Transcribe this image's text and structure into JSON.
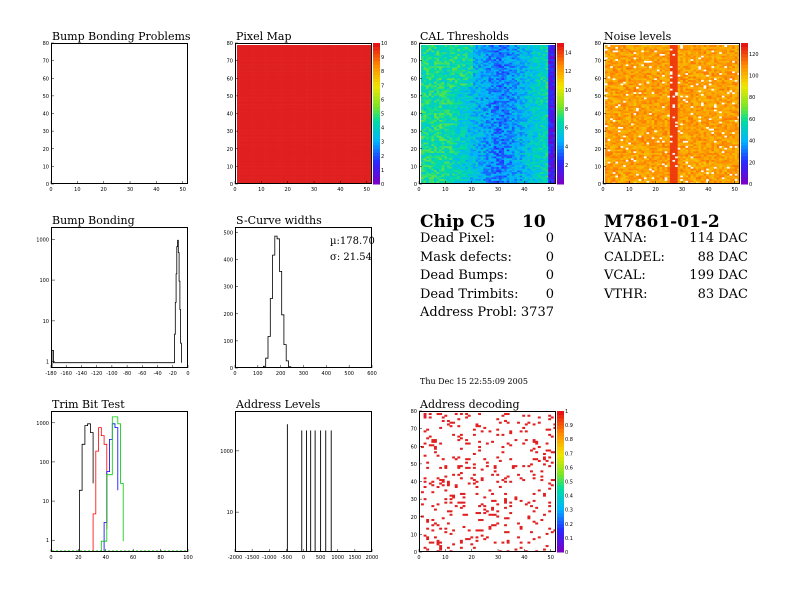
{
  "chart_data": [
    {
      "id": "bb_problems",
      "type": "heatmap",
      "title": "Bump Bonding Problems",
      "xlim": [
        0,
        52
      ],
      "ylim": [
        0,
        80
      ],
      "xticks": [
        0,
        10,
        20,
        30,
        40,
        50
      ],
      "yticks": [
        0,
        10,
        20,
        30,
        40,
        50,
        60,
        70,
        80
      ],
      "values": "empty"
    },
    {
      "id": "pixel_map",
      "type": "heatmap",
      "title": "Pixel Map",
      "xlim": [
        0,
        52
      ],
      "ylim": [
        0,
        80
      ],
      "xticks": [
        0,
        10,
        20,
        30,
        40,
        50
      ],
      "yticks": [
        0,
        10,
        20,
        30,
        40,
        50,
        60,
        70,
        80
      ],
      "zlim": [
        0,
        10
      ],
      "zticks": [
        0,
        1,
        2,
        3,
        4,
        5,
        6,
        7,
        8,
        9,
        10
      ],
      "uniform_value": 10
    },
    {
      "id": "cal_thresholds",
      "type": "heatmap",
      "title": "CAL Thresholds",
      "xlim": [
        0,
        52
      ],
      "ylim": [
        0,
        80
      ],
      "xticks": [
        0,
        10,
        20,
        30,
        40,
        50
      ],
      "yticks": [
        0,
        10,
        20,
        30,
        40,
        50,
        60,
        70,
        80
      ],
      "zlim": [
        0,
        15
      ],
      "zticks": [
        2,
        4,
        6,
        8,
        10,
        12,
        14
      ]
    },
    {
      "id": "noise_levels",
      "type": "heatmap",
      "title": "Noise levels",
      "xlim": [
        0,
        52
      ],
      "ylim": [
        0,
        80
      ],
      "xticks": [
        0,
        10,
        20,
        30,
        40,
        50
      ],
      "yticks": [
        0,
        10,
        20,
        30,
        40,
        50,
        60,
        70,
        80
      ],
      "zlim": [
        0,
        130
      ],
      "zticks": [
        0,
        20,
        40,
        60,
        80,
        100,
        120
      ]
    },
    {
      "id": "bump_bonding",
      "type": "line",
      "title": "Bump Bonding",
      "xlim": [
        -180,
        0
      ],
      "xticks": [
        -180,
        -160,
        -140,
        -120,
        -100,
        -80,
        -60,
        -40,
        -20,
        0
      ],
      "ylog": true,
      "ylim": [
        0.7,
        2000
      ],
      "yticks": [
        1,
        10,
        100,
        1000
      ],
      "series": [
        {
          "x": [
            -180,
            -178,
            -20,
            -19,
            -18,
            -17,
            -16,
            -15,
            -14,
            -13,
            -12,
            -11,
            -10
          ],
          "y": [
            2,
            1,
            1,
            5,
            30,
            150,
            700,
            1000,
            500,
            100,
            20,
            3,
            1
          ]
        }
      ]
    },
    {
      "id": "scurve_widths",
      "type": "line",
      "title": "S-Curve widths",
      "xlim": [
        0,
        600
      ],
      "ylim": [
        0,
        520
      ],
      "xticks": [
        0,
        100,
        200,
        300,
        400,
        500,
        600
      ],
      "yticks": [
        0,
        100,
        200,
        300,
        400,
        500
      ],
      "stats": {
        "mean_label": "µ:178.70",
        "sigma_label": "σ: 21.54"
      },
      "series": [
        {
          "x": [
            110,
            120,
            130,
            140,
            150,
            160,
            170,
            180,
            190,
            200,
            210,
            220,
            230,
            240,
            250
          ],
          "y": [
            2,
            10,
            40,
            120,
            260,
            420,
            490,
            480,
            360,
            200,
            90,
            30,
            8,
            2,
            0
          ]
        }
      ]
    },
    {
      "id": "trim_bit_test",
      "type": "line",
      "title": "Trim Bit Test",
      "xlim": [
        0,
        100
      ],
      "xticks": [
        0,
        20,
        40,
        60,
        80,
        100
      ],
      "ylog": true,
      "ylim": [
        0.5,
        2000
      ],
      "yticks": [
        1,
        10,
        100,
        1000
      ],
      "series": [
        {
          "color": "#000000",
          "x": [
            20,
            22,
            24,
            26,
            28,
            30
          ],
          "y": [
            20,
            300,
            900,
            1000,
            600,
            30
          ]
        },
        {
          "color": "#ff0000",
          "x": [
            30,
            32,
            34,
            36,
            38,
            40
          ],
          "y": [
            5,
            200,
            800,
            500,
            300,
            2
          ]
        },
        {
          "color": "#0000ff",
          "x": [
            38,
            40,
            42,
            44,
            46,
            48
          ],
          "y": [
            3,
            60,
            400,
            1000,
            800,
            20
          ]
        },
        {
          "color": "#00cc00",
          "x": [
            36,
            40,
            44,
            48,
            50,
            52
          ],
          "y": [
            1,
            50,
            1500,
            1000,
            30,
            1
          ]
        }
      ]
    },
    {
      "id": "address_levels",
      "type": "bar",
      "title": "Address Levels",
      "xlim": [
        -2000,
        2000
      ],
      "xticks": [
        -2000,
        -1500,
        -1000,
        -500,
        0,
        500,
        1000,
        1500,
        2000
      ],
      "ylog": true,
      "ylim": [
        0.5,
        20000
      ],
      "yticks": [
        10,
        1000
      ],
      "peaks_x": [
        -500,
        -80,
        60,
        180,
        310,
        470,
        620,
        780
      ],
      "peaks_y": [
        8000,
        5000,
        5000,
        5000,
        5000,
        5000,
        5000,
        5000
      ]
    },
    {
      "id": "address_decoding",
      "type": "heatmap",
      "title": "Address decoding",
      "xlim": [
        0,
        52
      ],
      "ylim": [
        0,
        80
      ],
      "xticks": [
        0,
        10,
        20,
        30,
        40,
        50
      ],
      "yticks": [
        0,
        10,
        20,
        30,
        40,
        50,
        60,
        70,
        80
      ],
      "zlim": [
        0,
        1
      ],
      "zticks": [
        0,
        0.1,
        0.2,
        0.3,
        0.4,
        0.5,
        0.6,
        0.7,
        0.8,
        0.9,
        1
      ]
    }
  ],
  "chip_info": {
    "chip_label": "Chip C5",
    "chip_number": "10",
    "rows": [
      {
        "label": "Dead Pixel:",
        "value": "0"
      },
      {
        "label": "Mask defects:",
        "value": "0"
      },
      {
        "label": "Dead Bumps:",
        "value": "0"
      },
      {
        "label": "Dead Trimbits:",
        "value": "0"
      },
      {
        "label": "Address Probl:",
        "value": "3737"
      }
    ]
  },
  "module_info": {
    "module_label": "M7861-01-2",
    "rows": [
      {
        "label": "VANA:",
        "value": "114 DAC"
      },
      {
        "label": "CALDEL:",
        "value": "88 DAC"
      },
      {
        "label": "VCAL:",
        "value": "199 DAC"
      },
      {
        "label": "VTHR:",
        "value": "83 DAC"
      }
    ]
  },
  "timestamp": "Thu Dec 15 22:55:09 2005"
}
